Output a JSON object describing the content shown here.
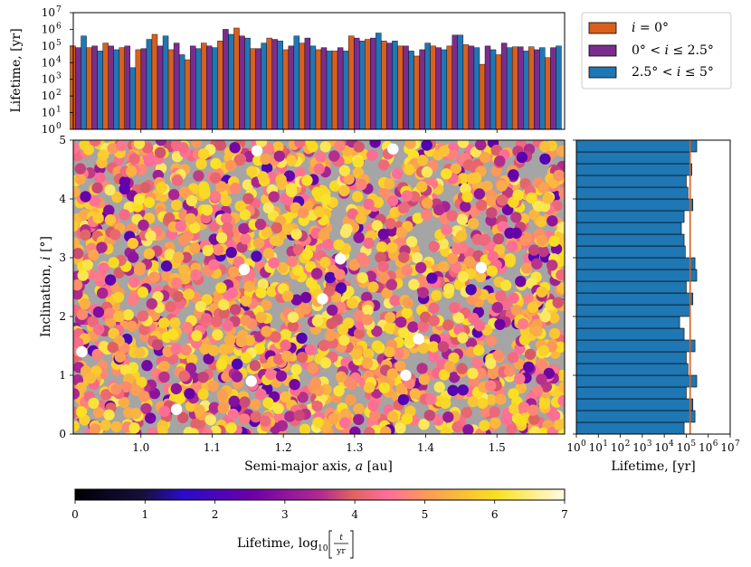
{
  "chart_data": [
    {
      "type": "bar",
      "panel": "top-histogram",
      "ylabel": "Lifetime, [yr]",
      "yscale": "log",
      "ylim": [
        1,
        10000000
      ],
      "ytick_exponents": [
        "0",
        "1",
        "2",
        "3",
        "4",
        "5",
        "6",
        "7"
      ],
      "ytick_base": "10",
      "xlim": [
        0.905,
        1.595
      ],
      "series": [
        {
          "name": "i = 0°",
          "legend": "𝑖 = 0°",
          "color": "#d95f1d"
        },
        {
          "name": "0° < i ≤ 2.5°",
          "legend": "0° < 𝑖 ≤ 2.5°",
          "color": "#7b2d8e"
        },
        {
          "name": "2.5° < i ≤ 5°",
          "legend": "2.5° < 𝑖 ≤ 5°",
          "color": "#1f77b4"
        }
      ],
      "groups_a": [
        0.912,
        0.935,
        0.958,
        0.981,
        1.004,
        1.027,
        1.05,
        1.073,
        1.096,
        1.119,
        1.142,
        1.165,
        1.188,
        1.211,
        1.234,
        1.257,
        1.28,
        1.303,
        1.326,
        1.349,
        1.372,
        1.395,
        1.418,
        1.441,
        1.464,
        1.487,
        1.51,
        1.533,
        1.556,
        1.579
      ],
      "values": [
        [
          100000,
          80000,
          400000
        ],
        [
          80000,
          100000,
          50000
        ],
        [
          150000,
          100000,
          60000
        ],
        [
          80000,
          100000,
          5000
        ],
        [
          60000,
          70000,
          250000
        ],
        [
          500000,
          100000,
          400000
        ],
        [
          60000,
          150000,
          30000
        ],
        [
          15000,
          100000,
          70000
        ],
        [
          150000,
          100000,
          80000
        ],
        [
          200000,
          1000000,
          500000
        ],
        [
          1200000,
          400000,
          300000
        ],
        [
          70000,
          70000,
          150000
        ],
        [
          300000,
          250000,
          200000
        ],
        [
          60000,
          100000,
          400000
        ],
        [
          150000,
          300000,
          100000
        ],
        [
          60000,
          80000,
          50000
        ],
        [
          50000,
          80000,
          50000
        ],
        [
          400000,
          300000,
          200000
        ],
        [
          250000,
          300000,
          600000
        ],
        [
          200000,
          150000,
          200000
        ],
        [
          100000,
          100000,
          50000
        ],
        [
          25000,
          60000,
          150000
        ],
        [
          100000,
          80000,
          60000
        ],
        [
          100000,
          450000,
          450000
        ],
        [
          120000,
          100000,
          80000
        ],
        [
          8000,
          100000,
          60000
        ],
        [
          30000,
          150000,
          80000
        ],
        [
          90000,
          90000,
          50000
        ],
        [
          90000,
          60000,
          80000
        ],
        [
          20000,
          80000,
          100000
        ]
      ]
    },
    {
      "type": "scatter",
      "panel": "main",
      "xlabel": "Semi-major axis, 𝑎 [au]",
      "ylabel": "Inclination, 𝑖 [°]",
      "xlim": [
        0.905,
        1.595
      ],
      "ylim": [
        0,
        5
      ],
      "xticks": [
        "1.0",
        "1.1",
        "1.2",
        "1.3",
        "1.4",
        "1.5"
      ],
      "yticks": [
        "0",
        "1",
        "2",
        "3",
        "4",
        "5"
      ],
      "background": "#a5a5a5",
      "colormap": "plasma",
      "color_by": "log10 lifetime",
      "n_points_approx": 2200,
      "white_points": [
        [
          1.163,
          4.82
        ],
        [
          1.354,
          4.85
        ],
        [
          1.145,
          2.8
        ],
        [
          1.28,
          2.98
        ],
        [
          1.478,
          2.83
        ],
        [
          1.255,
          2.3
        ],
        [
          1.39,
          1.62
        ],
        [
          1.372,
          1.0
        ],
        [
          1.155,
          0.9
        ],
        [
          1.05,
          0.42
        ],
        [
          0.917,
          1.4
        ]
      ]
    },
    {
      "type": "bar",
      "panel": "right-histogram",
      "orientation": "horizontal",
      "xlabel": "Lifetime, [yr]",
      "xscale": "log",
      "xlim": [
        1,
        10000000
      ],
      "xtick_exponents": [
        "0",
        "1",
        "2",
        "3",
        "4",
        "5",
        "6",
        "7"
      ],
      "xtick_base": "10",
      "ylim": [
        0,
        5
      ],
      "bar_color": "#1f77b4",
      "reference_line_value": 150000,
      "reference_line_color": "#d95f1d",
      "bin_centers_i": [
        0.1,
        0.3,
        0.5,
        0.7,
        0.9,
        1.1,
        1.3,
        1.5,
        1.7,
        1.9,
        2.1,
        2.3,
        2.5,
        2.7,
        2.9,
        3.1,
        3.3,
        3.5,
        3.7,
        3.9,
        4.1,
        4.3,
        4.5,
        4.7,
        4.9
      ],
      "values": [
        80000,
        250000,
        200000,
        100000,
        300000,
        120000,
        100000,
        250000,
        80000,
        50000,
        150000,
        200000,
        100000,
        300000,
        250000,
        90000,
        80000,
        60000,
        80000,
        200000,
        120000,
        100000,
        180000,
        150000,
        300000
      ]
    },
    {
      "type": "colorbar",
      "panel": "colorbar",
      "label_prefix": "Lifetime, log",
      "label_sub": "10",
      "label_frac_num": "t",
      "label_frac_den": "yr",
      "ticks": [
        "0",
        "1",
        "2",
        "3",
        "4",
        "5",
        "6",
        "7"
      ],
      "range": [
        0,
        7
      ],
      "colormap": "plasma"
    }
  ]
}
